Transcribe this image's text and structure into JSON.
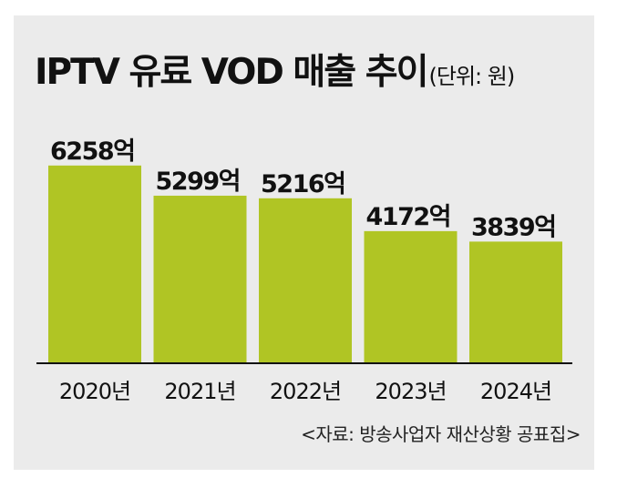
{
  "title": "IPTV 유료 VOD 매출 추이",
  "unit_note": "(단위: 원)",
  "source": "<자료: 방송사업자 재산상황 공표집>",
  "colors": {
    "bar": "#b0c524",
    "background": "#ebebeb",
    "axis": "#111111"
  },
  "chart_data": {
    "type": "bar",
    "title": "IPTV 유료 VOD 매출 추이",
    "unit": "(단위: 원)",
    "categories": [
      "2020년",
      "2021년",
      "2022년",
      "2023년",
      "2024년"
    ],
    "values": [
      6258,
      5299,
      5216,
      4172,
      3839
    ],
    "value_labels": [
      "6258억",
      "5299억",
      "5216억",
      "4172억",
      "3839억"
    ],
    "ylim": [
      0,
      6600
    ],
    "grid": false,
    "legend": "none"
  }
}
